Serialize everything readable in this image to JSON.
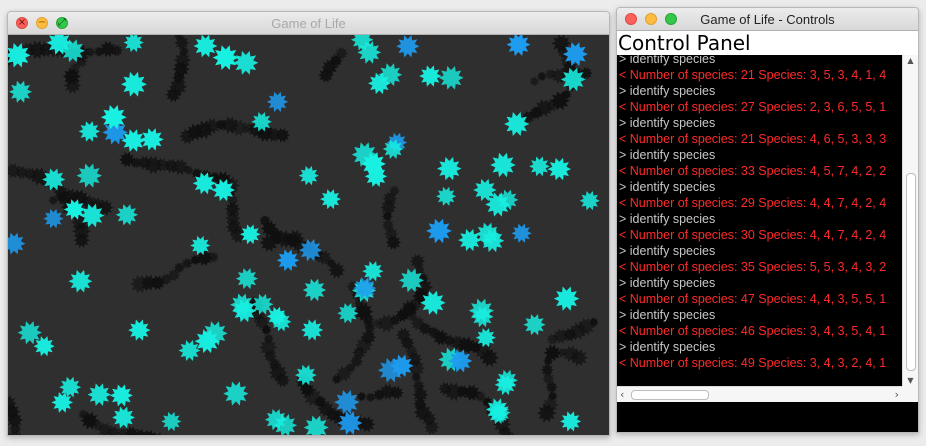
{
  "game_window": {
    "title": "Game of Life",
    "close_glyph": "×",
    "min_glyph": "−",
    "max_glyph": "⤢",
    "colors": {
      "board_bg": "#2f2f2f",
      "dead_trail": "#0f0f0f",
      "cell_cyan": "#18f0e2",
      "cell_blue": "#1e9cf0"
    }
  },
  "controls_window": {
    "title": "Game of Life - Controls",
    "panel_title": "Control Panel",
    "console_lines": [
      {
        "kind": "cmd",
        "text": "> identify species"
      },
      {
        "kind": "resp",
        "text": "< Number of species: 21 Species: 3, 5, 3, 4, 1, 4"
      },
      {
        "kind": "cmd",
        "text": "> identify species"
      },
      {
        "kind": "resp",
        "text": "< Number of species: 27 Species: 2, 3, 6, 5, 5, 1"
      },
      {
        "kind": "cmd",
        "text": "> identify species"
      },
      {
        "kind": "resp",
        "text": "< Number of species: 21 Species: 4, 6, 5, 3, 3, 3"
      },
      {
        "kind": "cmd",
        "text": "> identify species"
      },
      {
        "kind": "resp",
        "text": "< Number of species: 33 Species: 4, 5, 7, 4, 2, 2"
      },
      {
        "kind": "cmd",
        "text": "> identify species"
      },
      {
        "kind": "resp",
        "text": "< Number of species: 29 Species: 4, 4, 7, 4, 2, 4"
      },
      {
        "kind": "cmd",
        "text": "> identify species"
      },
      {
        "kind": "resp",
        "text": "< Number of species: 30 Species: 4, 4, 7, 4, 2, 4"
      },
      {
        "kind": "cmd",
        "text": "> identify species"
      },
      {
        "kind": "resp",
        "text": "< Number of species: 35 Species: 5, 5, 3, 4, 3, 2"
      },
      {
        "kind": "cmd",
        "text": "> identify species"
      },
      {
        "kind": "resp",
        "text": "< Number of species: 47 Species: 4, 4, 3, 5, 5, 1"
      },
      {
        "kind": "cmd",
        "text": "> identify species"
      },
      {
        "kind": "resp",
        "text": "< Number of species: 46 Species: 3, 4, 3, 5, 4, 1"
      },
      {
        "kind": "cmd",
        "text": "> identify species"
      },
      {
        "kind": "resp",
        "text": "< Number of species: 49 Species: 3, 4, 3, 2, 4, 1"
      }
    ],
    "colors": {
      "cmd_text": "#c8c8c8",
      "resp_text": "#ff2a2a",
      "console_bg": "#000000"
    },
    "icons": {
      "scroll_up": "▲",
      "scroll_down": "▼",
      "scroll_left": "‹",
      "scroll_right": "›"
    },
    "command_input": {
      "value": ""
    }
  }
}
